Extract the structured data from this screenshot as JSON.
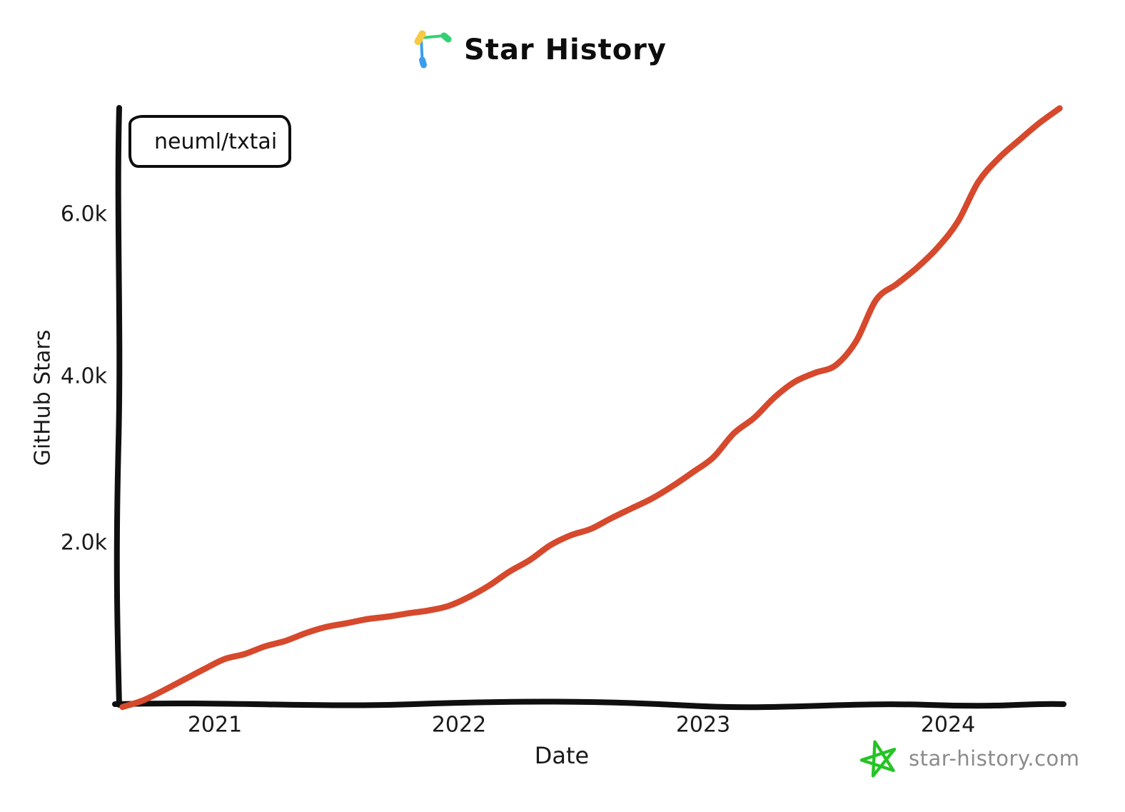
{
  "title": {
    "text": "Star History"
  },
  "legend": {
    "repo": "neuml/txtai"
  },
  "watermark": {
    "text": "star-history.com"
  },
  "axes": {
    "x": {
      "label": "Date",
      "ticks": [
        "2021",
        "2022",
        "2023",
        "2024"
      ]
    },
    "y": {
      "label": "GitHub Stars",
      "ticks": [
        "2.0k",
        "4.0k",
        "6.0k"
      ]
    }
  },
  "colors": {
    "series": "#d6492c",
    "axis": "#0f0f0f",
    "watermark_text": "#8b8b8b",
    "star_green": "#24c424",
    "icon_blue": "#3b9df0",
    "icon_green": "#33d173",
    "icon_yellow": "#f6c944"
  },
  "chart_data": {
    "type": "line",
    "title": "Star History",
    "xlabel": "Date",
    "ylabel": "GitHub Stars",
    "x_tick_years": [
      2021,
      2022,
      2023,
      2024
    ],
    "y_tick_values": [
      2000,
      4000,
      6000
    ],
    "xlim_years": [
      2020.6,
      2024.5
    ],
    "ylim": [
      0,
      7400
    ],
    "grid": false,
    "legend_position": "top-left",
    "series": [
      {
        "name": "neuml/txtai",
        "color": "#d6492c",
        "points": [
          [
            "2020-08",
            0
          ],
          [
            "2020-09",
            80
          ],
          [
            "2020-10",
            200
          ],
          [
            "2020-11",
            330
          ],
          [
            "2020-12",
            460
          ],
          [
            "2021-01",
            583
          ],
          [
            "2021-02",
            645
          ],
          [
            "2021-03",
            739
          ],
          [
            "2021-04",
            805
          ],
          [
            "2021-05",
            900
          ],
          [
            "2021-06",
            975
          ],
          [
            "2021-07",
            1020
          ],
          [
            "2021-08",
            1070
          ],
          [
            "2021-09",
            1100
          ],
          [
            "2021-10",
            1140
          ],
          [
            "2021-11",
            1175
          ],
          [
            "2021-12",
            1230
          ],
          [
            "2022-01",
            1340
          ],
          [
            "2022-02",
            1480
          ],
          [
            "2022-03",
            1650
          ],
          [
            "2022-04",
            1790
          ],
          [
            "2022-05",
            1970
          ],
          [
            "2022-06",
            2090
          ],
          [
            "2022-07",
            2170
          ],
          [
            "2022-08",
            2300
          ],
          [
            "2022-09",
            2420
          ],
          [
            "2022-10",
            2540
          ],
          [
            "2022-11",
            2690
          ],
          [
            "2022-12",
            2860
          ],
          [
            "2023-01",
            3040
          ],
          [
            "2023-02",
            3330
          ],
          [
            "2023-03",
            3520
          ],
          [
            "2023-04",
            3770
          ],
          [
            "2023-05",
            3960
          ],
          [
            "2023-06",
            4070
          ],
          [
            "2023-07",
            4160
          ],
          [
            "2023-08",
            4450
          ],
          [
            "2023-09",
            4960
          ],
          [
            "2023-10",
            5150
          ],
          [
            "2023-11",
            5350
          ],
          [
            "2023-12",
            5590
          ],
          [
            "2024-01",
            5910
          ],
          [
            "2024-02",
            6390
          ],
          [
            "2024-03",
            6680
          ],
          [
            "2024-04",
            6900
          ],
          [
            "2024-05",
            7110
          ],
          [
            "2024-06",
            7290
          ]
        ]
      }
    ]
  }
}
